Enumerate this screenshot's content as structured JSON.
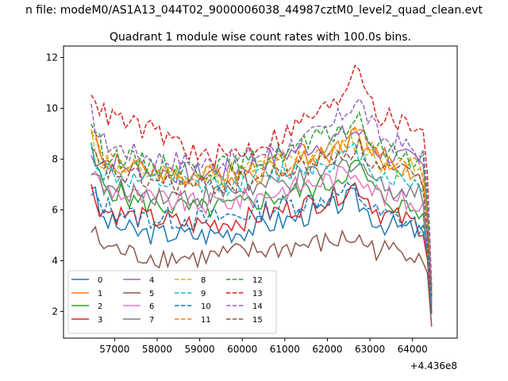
{
  "figure": {
    "suptitle": "n file: modeM0/AS1A13_044T02_9000006038_44987cztM0_level2_quad_clean.evt",
    "title": "Quadrant 1 module wise count rates with 100.0s bins.",
    "x_offset_label": "+4.436e8"
  },
  "chart_data": {
    "type": "line",
    "title": "Quadrant 1 module wise count rates with 100.0s bins.",
    "xlabel": "",
    "ylabel": "",
    "x_offset": 443600000,
    "xlim": [
      55800,
      65050
    ],
    "ylim": [
      0.95,
      12.45
    ],
    "x_ticks": [
      57000,
      58000,
      59000,
      60000,
      61000,
      62000,
      63000,
      64000
    ],
    "x_tick_labels": [
      "57000",
      "58000",
      "59000",
      "60000",
      "61000",
      "62000",
      "63000",
      "64000"
    ],
    "y_ticks": [
      2,
      4,
      6,
      8,
      10,
      12
    ],
    "y_tick_labels": [
      "2",
      "4",
      "6",
      "8",
      "10",
      "12"
    ],
    "x_start": 56450,
    "x_step": 100,
    "legend_location": "lower-left",
    "legend_columns": 4,
    "series": [
      {
        "name": "0",
        "color": "#1f77b4",
        "dash": "solid",
        "anchors": [
          [
            56450,
            7.1
          ],
          [
            56700,
            5.6
          ],
          [
            57500,
            5.1
          ],
          [
            59000,
            5.0
          ],
          [
            60000,
            5.2
          ],
          [
            61000,
            5.6
          ],
          [
            62000,
            6.0
          ],
          [
            62600,
            6.5
          ],
          [
            63200,
            5.5
          ],
          [
            64000,
            5.2
          ],
          [
            64300,
            5.0
          ],
          [
            64450,
            1.9
          ]
        ]
      },
      {
        "name": "1",
        "color": "#ff7f0e",
        "dash": "solid",
        "anchors": [
          [
            56450,
            9.5
          ],
          [
            56700,
            7.8
          ],
          [
            57500,
            7.6
          ],
          [
            59000,
            7.3
          ],
          [
            60000,
            7.4
          ],
          [
            61000,
            7.7
          ],
          [
            62000,
            8.2
          ],
          [
            62700,
            9.0
          ],
          [
            63200,
            7.9
          ],
          [
            64000,
            7.5
          ],
          [
            64300,
            7.2
          ],
          [
            64450,
            2.8
          ]
        ]
      },
      {
        "name": "2",
        "color": "#2ca02c",
        "dash": "solid",
        "anchors": [
          [
            56450,
            8.3
          ],
          [
            56700,
            7.0
          ],
          [
            57500,
            6.3
          ],
          [
            59000,
            6.0
          ],
          [
            60000,
            6.2
          ],
          [
            61000,
            6.6
          ],
          [
            62000,
            7.0
          ],
          [
            62700,
            7.8
          ],
          [
            63200,
            6.5
          ],
          [
            64000,
            6.0
          ],
          [
            64300,
            5.7
          ],
          [
            64450,
            2.2
          ]
        ]
      },
      {
        "name": "3",
        "color": "#d62728",
        "dash": "solid",
        "anchors": [
          [
            56450,
            6.8
          ],
          [
            56700,
            6.0
          ],
          [
            57500,
            5.7
          ],
          [
            59000,
            5.4
          ],
          [
            60000,
            5.6
          ],
          [
            61000,
            6.0
          ],
          [
            62000,
            6.4
          ],
          [
            62700,
            7.0
          ],
          [
            63200,
            5.9
          ],
          [
            64000,
            5.5
          ],
          [
            64300,
            5.3
          ],
          [
            64450,
            2.0
          ]
        ]
      },
      {
        "name": "4",
        "color": "#9467bd",
        "dash": "solid",
        "anchors": [
          [
            56450,
            8.1
          ],
          [
            56700,
            8.0
          ],
          [
            57500,
            7.6
          ],
          [
            59000,
            7.4
          ],
          [
            60000,
            7.7
          ],
          [
            61000,
            8.2
          ],
          [
            62000,
            8.7
          ],
          [
            62700,
            9.1
          ],
          [
            63200,
            8.3
          ],
          [
            64000,
            7.9
          ],
          [
            64300,
            7.6
          ],
          [
            64450,
            2.5
          ]
        ]
      },
      {
        "name": "5",
        "color": "#8c564b",
        "dash": "solid",
        "anchors": [
          [
            56450,
            5.2
          ],
          [
            56700,
            4.6
          ],
          [
            57500,
            4.2
          ],
          [
            59000,
            4.1
          ],
          [
            60000,
            4.3
          ],
          [
            61000,
            4.5
          ],
          [
            62000,
            4.7
          ],
          [
            62600,
            4.9
          ],
          [
            63200,
            4.4
          ],
          [
            64000,
            4.4
          ],
          [
            64300,
            4.2
          ],
          [
            64450,
            1.4
          ]
        ]
      },
      {
        "name": "6",
        "color": "#e377c2",
        "dash": "solid",
        "anchors": [
          [
            56450,
            7.6
          ],
          [
            56700,
            6.9
          ],
          [
            57500,
            6.5
          ],
          [
            59000,
            6.2
          ],
          [
            60000,
            6.4
          ],
          [
            61000,
            6.8
          ],
          [
            62000,
            7.2
          ],
          [
            62700,
            7.6
          ],
          [
            63200,
            6.6
          ],
          [
            64000,
            6.3
          ],
          [
            64300,
            6.1
          ],
          [
            64450,
            2.3
          ]
        ]
      },
      {
        "name": "7",
        "color": "#7f7f7f",
        "dash": "solid",
        "anchors": [
          [
            56450,
            7.8
          ],
          [
            56700,
            6.8
          ],
          [
            57500,
            6.7
          ],
          [
            59000,
            6.5
          ],
          [
            60000,
            6.8
          ],
          [
            61000,
            7.0
          ],
          [
            62000,
            7.5
          ],
          [
            62700,
            8.0
          ],
          [
            63200,
            7.0
          ],
          [
            64000,
            6.7
          ],
          [
            64300,
            6.5
          ],
          [
            64450,
            2.4
          ]
        ]
      },
      {
        "name": "8",
        "color": "#bcbd22",
        "dash": "dashed",
        "anchors": [
          [
            56450,
            8.8
          ],
          [
            56700,
            7.9
          ],
          [
            57500,
            7.5
          ],
          [
            59000,
            7.3
          ],
          [
            60000,
            7.5
          ],
          [
            61000,
            7.9
          ],
          [
            62000,
            8.3
          ],
          [
            62700,
            8.7
          ],
          [
            63200,
            7.9
          ],
          [
            64000,
            7.6
          ],
          [
            64300,
            7.3
          ],
          [
            64450,
            2.6
          ]
        ]
      },
      {
        "name": "9",
        "color": "#17becf",
        "dash": "dashed",
        "anchors": [
          [
            56450,
            8.4
          ],
          [
            56700,
            7.5
          ],
          [
            57500,
            7.1
          ],
          [
            59000,
            6.9
          ],
          [
            60000,
            7.1
          ],
          [
            61000,
            7.5
          ],
          [
            62000,
            7.9
          ],
          [
            62700,
            8.3
          ],
          [
            63200,
            7.4
          ],
          [
            64000,
            7.1
          ],
          [
            64300,
            6.9
          ],
          [
            64450,
            2.5
          ]
        ]
      },
      {
        "name": "10",
        "color": "#1f77b4",
        "dash": "dashed",
        "anchors": [
          [
            56450,
            6.5
          ],
          [
            56700,
            6.2
          ],
          [
            57500,
            5.7
          ],
          [
            59000,
            5.6
          ],
          [
            60000,
            5.8
          ],
          [
            61000,
            6.2
          ],
          [
            62000,
            6.5
          ],
          [
            62600,
            6.8
          ],
          [
            63200,
            5.8
          ],
          [
            64000,
            5.5
          ],
          [
            64300,
            5.2
          ],
          [
            64450,
            1.9
          ]
        ]
      },
      {
        "name": "11",
        "color": "#ff7f0e",
        "dash": "dashed",
        "anchors": [
          [
            56450,
            9.1
          ],
          [
            56700,
            8.0
          ],
          [
            57500,
            7.6
          ],
          [
            59000,
            7.3
          ],
          [
            60000,
            7.5
          ],
          [
            61000,
            7.9
          ],
          [
            62000,
            8.4
          ],
          [
            62700,
            9.1
          ],
          [
            63200,
            8.0
          ],
          [
            64000,
            7.7
          ],
          [
            64300,
            7.4
          ],
          [
            64450,
            2.7
          ]
        ]
      },
      {
        "name": "12",
        "color": "#2ca02c",
        "dash": "dashed",
        "anchors": [
          [
            56450,
            9.6
          ],
          [
            56700,
            8.3
          ],
          [
            57500,
            7.9
          ],
          [
            59000,
            7.6
          ],
          [
            60000,
            7.8
          ],
          [
            61000,
            8.3
          ],
          [
            62000,
            8.9
          ],
          [
            62700,
            9.5
          ],
          [
            63200,
            8.4
          ],
          [
            64000,
            8.1
          ],
          [
            64300,
            7.9
          ],
          [
            64450,
            2.9
          ]
        ]
      },
      {
        "name": "13",
        "color": "#d62728",
        "dash": "dashed",
        "anchors": [
          [
            56450,
            10.9
          ],
          [
            56700,
            9.8
          ],
          [
            57500,
            9.3
          ],
          [
            58500,
            8.7
          ],
          [
            59000,
            8.0
          ],
          [
            60000,
            8.3
          ],
          [
            61000,
            9.0
          ],
          [
            61700,
            9.8
          ],
          [
            62200,
            10.1
          ],
          [
            62700,
            11.9
          ],
          [
            63200,
            9.7
          ],
          [
            64000,
            9.3
          ],
          [
            64300,
            9.4
          ],
          [
            64450,
            3.0
          ]
        ]
      },
      {
        "name": "14",
        "color": "#9467bd",
        "dash": "dashed",
        "anchors": [
          [
            56450,
            9.8
          ],
          [
            56700,
            8.7
          ],
          [
            57500,
            8.2
          ],
          [
            59000,
            7.8
          ],
          [
            60000,
            8.0
          ],
          [
            61000,
            8.5
          ],
          [
            62000,
            9.1
          ],
          [
            62700,
            10.4
          ],
          [
            63200,
            8.9
          ],
          [
            64000,
            8.4
          ],
          [
            64300,
            8.1
          ],
          [
            64450,
            2.9
          ]
        ]
      },
      {
        "name": "15",
        "color": "#8c564b",
        "dash": "dashed",
        "anchors": [
          [
            56450,
            8.2
          ],
          [
            56700,
            7.6
          ],
          [
            57500,
            7.2
          ],
          [
            59000,
            6.9
          ],
          [
            60000,
            7.1
          ],
          [
            61000,
            7.5
          ],
          [
            62000,
            8.0
          ],
          [
            62700,
            8.5
          ],
          [
            63200,
            7.6
          ],
          [
            64000,
            7.3
          ],
          [
            64300,
            7.0
          ],
          [
            64450,
            2.6
          ]
        ]
      }
    ]
  }
}
